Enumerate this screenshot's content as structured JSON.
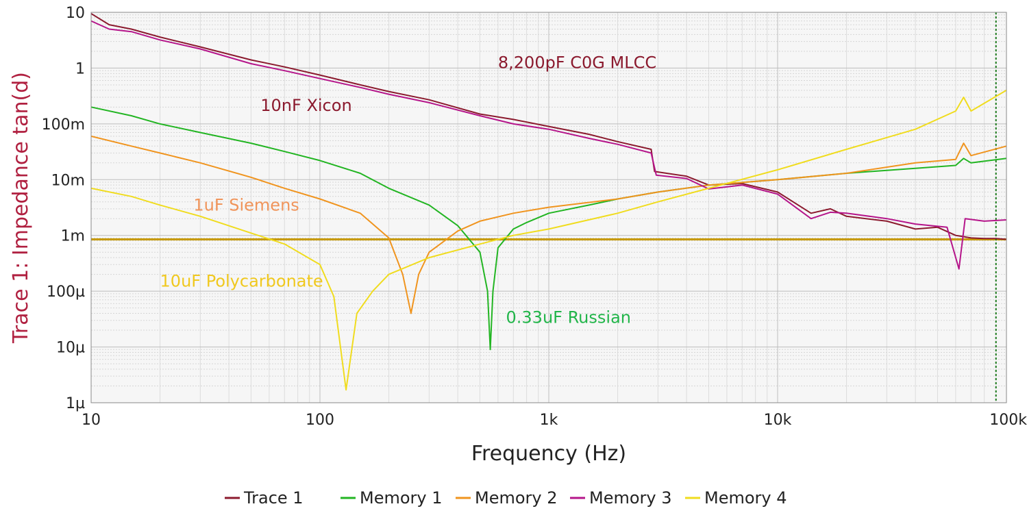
{
  "chart_data": {
    "type": "line",
    "xlabel": "Frequency (Hz)",
    "ylabel": "Trace 1: Impedance tan(d)",
    "x_scale": "log",
    "y_scale": "log",
    "xlim": [
      10,
      100000
    ],
    "ylim": [
      1e-06,
      10
    ],
    "x_ticks": [
      {
        "value": 10,
        "label": "10"
      },
      {
        "value": 100,
        "label": "100"
      },
      {
        "value": 1000,
        "label": "1k"
      },
      {
        "value": 10000,
        "label": "10k"
      },
      {
        "value": 100000,
        "label": "100k"
      }
    ],
    "y_ticks": [
      {
        "value": 10,
        "label": "10"
      },
      {
        "value": 1,
        "label": "1"
      },
      {
        "value": 0.1,
        "label": "100m"
      },
      {
        "value": 0.01,
        "label": "10m"
      },
      {
        "value": 0.001,
        "label": "1m"
      },
      {
        "value": 0.0001,
        "label": "100µ"
      },
      {
        "value": 1e-05,
        "label": "10µ"
      },
      {
        "value": 1e-06,
        "label": "1µ"
      }
    ],
    "grid": true,
    "legend_position": "bottom",
    "reference_line": {
      "y": 0.00085,
      "color": "#c79a00"
    },
    "marker_line": {
      "x": 90000,
      "color": "#1a7a1a"
    },
    "series": [
      {
        "name": "Trace 1",
        "color": "#8b1a2e",
        "points": [
          [
            10,
            9.5
          ],
          [
            12,
            6
          ],
          [
            15,
            5
          ],
          [
            20,
            3.6
          ],
          [
            30,
            2.4
          ],
          [
            50,
            1.4
          ],
          [
            70,
            1.05
          ],
          [
            100,
            0.75
          ],
          [
            150,
            0.5
          ],
          [
            200,
            0.38
          ],
          [
            300,
            0.27
          ],
          [
            500,
            0.15
          ],
          [
            700,
            0.12
          ],
          [
            1000,
            0.09
          ],
          [
            1500,
            0.065
          ],
          [
            2000,
            0.048
          ],
          [
            2800,
            0.035
          ],
          [
            2900,
            0.014
          ],
          [
            4000,
            0.0115
          ],
          [
            5000,
            0.008
          ],
          [
            7000,
            0.0085
          ],
          [
            10000,
            0.006
          ],
          [
            14000,
            0.0025
          ],
          [
            17000,
            0.003
          ],
          [
            20000,
            0.0022
          ],
          [
            30000,
            0.0018
          ],
          [
            40000,
            0.0013
          ],
          [
            50000,
            0.0014
          ],
          [
            60000,
            0.001
          ],
          [
            70000,
            0.0009
          ],
          [
            80000,
            0.00088
          ],
          [
            90000,
            0.00088
          ],
          [
            100000,
            0.00085
          ]
        ]
      },
      {
        "name": "Memory 1",
        "color": "#22b522",
        "points": [
          [
            10,
            0.2
          ],
          [
            15,
            0.14
          ],
          [
            20,
            0.1
          ],
          [
            30,
            0.07
          ],
          [
            50,
            0.045
          ],
          [
            70,
            0.032
          ],
          [
            100,
            0.022
          ],
          [
            150,
            0.013
          ],
          [
            200,
            0.007
          ],
          [
            300,
            0.0035
          ],
          [
            400,
            0.0015
          ],
          [
            500,
            0.0005
          ],
          [
            540,
            0.0001
          ],
          [
            555,
            9e-06
          ],
          [
            570,
            0.0001
          ],
          [
            600,
            0.0006
          ],
          [
            700,
            0.0013
          ],
          [
            800,
            0.0017
          ],
          [
            1000,
            0.0025
          ],
          [
            1500,
            0.0035
          ],
          [
            2000,
            0.0045
          ],
          [
            3000,
            0.006
          ],
          [
            5000,
            0.008
          ],
          [
            10000,
            0.01
          ],
          [
            20000,
            0.013
          ],
          [
            40000,
            0.016
          ],
          [
            60000,
            0.018
          ],
          [
            65000,
            0.024
          ],
          [
            70000,
            0.02
          ],
          [
            100000,
            0.024
          ]
        ]
      },
      {
        "name": "Memory 2",
        "color": "#f0941e",
        "points": [
          [
            10,
            0.06
          ],
          [
            15,
            0.04
          ],
          [
            20,
            0.03
          ],
          [
            30,
            0.02
          ],
          [
            50,
            0.011
          ],
          [
            70,
            0.007
          ],
          [
            100,
            0.0045
          ],
          [
            150,
            0.0025
          ],
          [
            200,
            0.0009
          ],
          [
            230,
            0.0002
          ],
          [
            250,
            4e-05
          ],
          [
            270,
            0.0002
          ],
          [
            300,
            0.0005
          ],
          [
            400,
            0.0012
          ],
          [
            500,
            0.0018
          ],
          [
            700,
            0.0025
          ],
          [
            1000,
            0.0032
          ],
          [
            2000,
            0.0045
          ],
          [
            3000,
            0.006
          ],
          [
            5000,
            0.008
          ],
          [
            10000,
            0.01
          ],
          [
            20000,
            0.013
          ],
          [
            40000,
            0.02
          ],
          [
            60000,
            0.023
          ],
          [
            65000,
            0.045
          ],
          [
            70000,
            0.027
          ],
          [
            100000,
            0.04
          ]
        ]
      },
      {
        "name": "Memory 3",
        "color": "#b5158a",
        "points": [
          [
            10,
            7
          ],
          [
            12,
            5
          ],
          [
            15,
            4.5
          ],
          [
            20,
            3.2
          ],
          [
            30,
            2.2
          ],
          [
            50,
            1.2
          ],
          [
            70,
            0.9
          ],
          [
            100,
            0.65
          ],
          [
            150,
            0.45
          ],
          [
            200,
            0.34
          ],
          [
            300,
            0.24
          ],
          [
            500,
            0.14
          ],
          [
            700,
            0.1
          ],
          [
            1000,
            0.08
          ],
          [
            1500,
            0.055
          ],
          [
            2000,
            0.043
          ],
          [
            2800,
            0.03
          ],
          [
            2950,
            0.012
          ],
          [
            4000,
            0.0105
          ],
          [
            5000,
            0.0068
          ],
          [
            7000,
            0.008
          ],
          [
            10000,
            0.0055
          ],
          [
            14000,
            0.002
          ],
          [
            17000,
            0.0026
          ],
          [
            20000,
            0.0025
          ],
          [
            30000,
            0.002
          ],
          [
            40000,
            0.0016
          ],
          [
            55000,
            0.0014
          ],
          [
            62000,
            0.00025
          ],
          [
            66000,
            0.002
          ],
          [
            80000,
            0.0018
          ],
          [
            100000,
            0.0019
          ]
        ]
      },
      {
        "name": "Memory 4",
        "color": "#f0dc1e",
        "points": [
          [
            10,
            0.007
          ],
          [
            15,
            0.005
          ],
          [
            20,
            0.0035
          ],
          [
            30,
            0.0022
          ],
          [
            50,
            0.0011
          ],
          [
            70,
            0.0007
          ],
          [
            100,
            0.0003
          ],
          [
            115,
            8e-05
          ],
          [
            130,
            1.7e-06
          ],
          [
            145,
            4e-05
          ],
          [
            170,
            0.0001
          ],
          [
            200,
            0.0002
          ],
          [
            300,
            0.0004
          ],
          [
            500,
            0.0007
          ],
          [
            700,
            0.001
          ],
          [
            1000,
            0.0013
          ],
          [
            2000,
            0.0025
          ],
          [
            3000,
            0.004
          ],
          [
            5000,
            0.007
          ],
          [
            10000,
            0.015
          ],
          [
            20000,
            0.035
          ],
          [
            40000,
            0.08
          ],
          [
            60000,
            0.17
          ],
          [
            65000,
            0.3
          ],
          [
            70000,
            0.17
          ],
          [
            100000,
            0.4
          ]
        ]
      }
    ],
    "annotations": [
      {
        "text": "8,200pF C0G MLCC",
        "x": 600,
        "y": 1.0,
        "color": "#8b1a2e"
      },
      {
        "text": "10nF Xicon",
        "x": 55,
        "y": 0.17,
        "color": "#8b1a2e"
      },
      {
        "text": "1uF Siemens",
        "x": 28,
        "y": 0.0028,
        "color": "#f0945a"
      },
      {
        "text": "10uF Polycarbonate",
        "x": 20,
        "y": 0.00012,
        "color": "#f0c81e"
      },
      {
        "text": "0.33uF Russian",
        "x": 650,
        "y": 2.7e-05,
        "color": "#22b54a"
      }
    ]
  }
}
